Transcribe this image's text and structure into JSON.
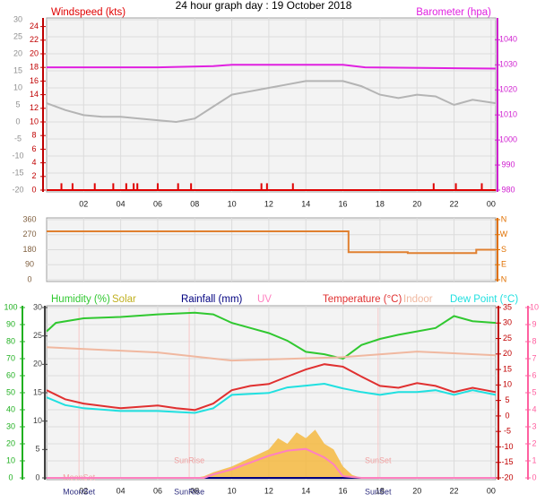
{
  "title": "24 hour graph day : 19 October 2018",
  "chart_data": [
    {
      "type": "line",
      "xlim": [
        0,
        24.25
      ],
      "xticks": [
        {
          "value": 2,
          "label": "02"
        },
        {
          "value": 4,
          "label": "04"
        },
        {
          "value": 6,
          "label": "06"
        },
        {
          "value": 8,
          "label": "08"
        },
        10,
        12,
        14,
        16,
        18,
        20,
        22,
        {
          "value": 24,
          "label": "00"
        }
      ],
      "ylim": [
        -20,
        30
      ],
      "yticks": [
        -20,
        -15,
        -10,
        -5,
        0,
        5,
        10,
        15,
        20,
        25,
        30
      ],
      "ycolor": "#909090",
      "y3lim": [
        0,
        25
      ],
      "y3ticks": [
        0,
        2,
        4,
        6,
        8,
        10,
        12,
        14,
        16,
        18,
        20,
        22,
        24
      ],
      "y3color": "#c00000",
      "y2lim": [
        980,
        1048
      ],
      "y2ticks": [
        980,
        990,
        1000,
        1010,
        1020,
        1030,
        1040
      ],
      "y2color": "#d020d0",
      "grid": true,
      "series": [
        {
          "name": "Windspeed (kts)",
          "color": "#e00000",
          "axis": "y3",
          "type": "bar",
          "x": [
            0.8,
            1.4,
            2.6,
            3.6,
            4.3,
            4.7,
            4.9,
            6.0,
            7.1,
            7.8,
            11.6,
            11.9,
            13.3,
            20.9,
            22.1,
            23.5
          ],
          "values": [
            1,
            1,
            1,
            1,
            1,
            1,
            1,
            1,
            1,
            1,
            1,
            1,
            1,
            1,
            1,
            1
          ]
        },
        {
          "color": "#b4b4b4",
          "axis": "y",
          "type": "line",
          "x": [
            0,
            1,
            2,
            3,
            4,
            5,
            6,
            7,
            8,
            9,
            10,
            11,
            12,
            13,
            14,
            15,
            16,
            17,
            18,
            19,
            20,
            21,
            22,
            23,
            24.25
          ],
          "values": [
            5.5,
            3.5,
            2,
            1.5,
            1.5,
            1,
            0.5,
            0,
            1,
            4.5,
            8,
            9,
            10,
            11,
            12,
            12,
            12,
            10.5,
            8,
            7,
            8,
            7.5,
            5,
            6.5,
            5.5
          ]
        },
        {
          "name": "Barometer (hpa)",
          "color": "#e020e0",
          "axis": "y2",
          "type": "line",
          "x": [
            0,
            6,
            9,
            10,
            16,
            17.2,
            24.25
          ],
          "values": [
            1029,
            1029,
            1029.5,
            1030,
            1030,
            1029,
            1028.5
          ]
        }
      ]
    },
    {
      "type": "line",
      "xlim": [
        0,
        24.25
      ],
      "ylim": [
        0,
        360
      ],
      "yticks": [
        0,
        90,
        180,
        270,
        360
      ],
      "ycolor": "#806040",
      "y2lim": [
        0,
        360
      ],
      "y2ticks": [
        {
          "value": 0,
          "label": "N"
        },
        {
          "value": 90,
          "label": "E"
        },
        {
          "value": 180,
          "label": "S"
        },
        {
          "value": 270,
          "label": "W"
        },
        {
          "value": 360,
          "label": "N"
        }
      ],
      "y2color": "#e07000",
      "grid": true,
      "series": [
        {
          "color": "#e08030",
          "axis": "y",
          "type": "line",
          "x": [
            0,
            16.3,
            16.3,
            19.5,
            19.5,
            23.2,
            23.2,
            24.25
          ],
          "values": [
            290,
            290,
            165,
            165,
            160,
            160,
            180,
            180
          ]
        }
      ]
    },
    {
      "type": "line",
      "xlim": [
        0,
        24.25
      ],
      "xticks": [
        {
          "value": 2,
          "label": "02"
        },
        {
          "value": 4,
          "label": "04"
        },
        {
          "value": 6,
          "label": "06"
        },
        {
          "value": 8,
          "label": "08"
        },
        10,
        12,
        14,
        16,
        18,
        20,
        22,
        {
          "value": 24,
          "label": "00"
        }
      ],
      "ylim": [
        0,
        100
      ],
      "yticks": [
        0,
        10,
        20,
        30,
        40,
        50,
        60,
        70,
        80,
        90,
        100
      ],
      "ycolor": "#20b020",
      "y3lim": [
        0,
        30
      ],
      "y3ticks": [
        0,
        5,
        10,
        15,
        20,
        25,
        30
      ],
      "y3color": "#404040",
      "y2lim": [
        -20,
        35
      ],
      "y2ticks": [
        -20,
        -15,
        -10,
        -5,
        0,
        5,
        10,
        15,
        20,
        25,
        30,
        35
      ],
      "y2color": "#c00000",
      "y4lim": [
        0,
        10
      ],
      "y4ticks": [
        0,
        1,
        2,
        3,
        4,
        5,
        6,
        7,
        8,
        9,
        10
      ],
      "y4color": "#ff60a0",
      "grid": true,
      "series": [
        {
          "name": "Humidity (%)",
          "color": "#30c830",
          "axis": "y",
          "type": "line",
          "x": [
            0,
            0.5,
            2,
            4,
            6,
            8,
            9,
            10,
            11,
            12,
            13,
            14,
            15,
            16,
            17,
            18,
            19,
            20,
            21,
            22,
            23,
            24.25
          ],
          "values": [
            86,
            91,
            93.7,
            94.5,
            96,
            97,
            96,
            91,
            88,
            85,
            80.5,
            74,
            72.6,
            70,
            78,
            81.6,
            84,
            86,
            88,
            95,
            92,
            91
          ]
        },
        {
          "name": "Solar",
          "color": "#f5b840",
          "axis": "y3",
          "type": "area",
          "x": [
            0,
            8,
            8.5,
            9,
            10,
            11,
            12,
            12.5,
            13,
            13.5,
            14,
            14.5,
            15,
            15.5,
            16,
            16.5,
            17,
            24.25
          ],
          "values": [
            0,
            0,
            0.3,
            1,
            2,
            3.5,
            5,
            7,
            6,
            8,
            7,
            8.5,
            6,
            5,
            2,
            0.5,
            0,
            0
          ]
        },
        {
          "name": "Rainfall (mm)",
          "color": "#000080",
          "axis": "y3",
          "type": "line",
          "x": [
            0,
            24.25
          ],
          "values": [
            0,
            0
          ]
        },
        {
          "name": "UV",
          "color": "#ff80c0",
          "axis": "y4",
          "type": "line",
          "x": [
            0,
            8.5,
            9,
            10,
            11,
            12,
            13,
            14,
            15,
            15.5,
            16,
            17,
            24.25
          ],
          "values": [
            0,
            0,
            0.2,
            0.5,
            0.9,
            1.3,
            1.6,
            1.7,
            1.2,
            0.8,
            0.1,
            0,
            0
          ]
        },
        {
          "name": "Temperature (°C)",
          "color": "#e03030",
          "axis": "y2",
          "type": "line",
          "x": [
            0,
            1,
            2,
            4,
            6,
            7,
            8,
            9,
            10,
            11,
            12,
            13,
            14,
            15,
            16,
            17,
            18,
            19,
            20,
            21,
            22,
            23,
            24.25
          ],
          "values": [
            8.3,
            5.4,
            4,
            2.5,
            3.4,
            2.5,
            1.9,
            4,
            8.3,
            9.7,
            10.3,
            12.7,
            15,
            16.7,
            15.9,
            12.7,
            9.7,
            9.1,
            10.6,
            9.7,
            7.7,
            9.1,
            7.7
          ]
        },
        {
          "name": "Indoor",
          "color": "#f0b8a0",
          "axis": "y2",
          "type": "line",
          "x": [
            0,
            6,
            10,
            16,
            20,
            24.25
          ],
          "values": [
            22.2,
            20.5,
            17.9,
            19,
            20.8,
            19.6
          ]
        },
        {
          "name": "Dew Point (°C)",
          "color": "#20e0e0",
          "axis": "y2",
          "type": "line",
          "x": [
            0,
            1,
            2,
            4,
            6,
            8,
            9,
            10,
            12,
            13,
            14,
            15,
            16,
            17,
            18,
            19,
            20,
            21,
            22,
            23,
            24.25
          ],
          "values": [
            6,
            3.5,
            2.5,
            1.6,
            1.6,
            1,
            2.5,
            6.8,
            7.4,
            9.2,
            9.8,
            10.4,
            8.9,
            7.7,
            6.8,
            7.7,
            7.7,
            8.3,
            6.8,
            8.3,
            6.8
          ]
        }
      ],
      "annotations": [
        {
          "text": "SunRise",
          "x": 7.7
        },
        {
          "text": "SunSet",
          "x": 17.9
        },
        {
          "text": "MoonSet",
          "x": 1.75
        }
      ]
    }
  ]
}
